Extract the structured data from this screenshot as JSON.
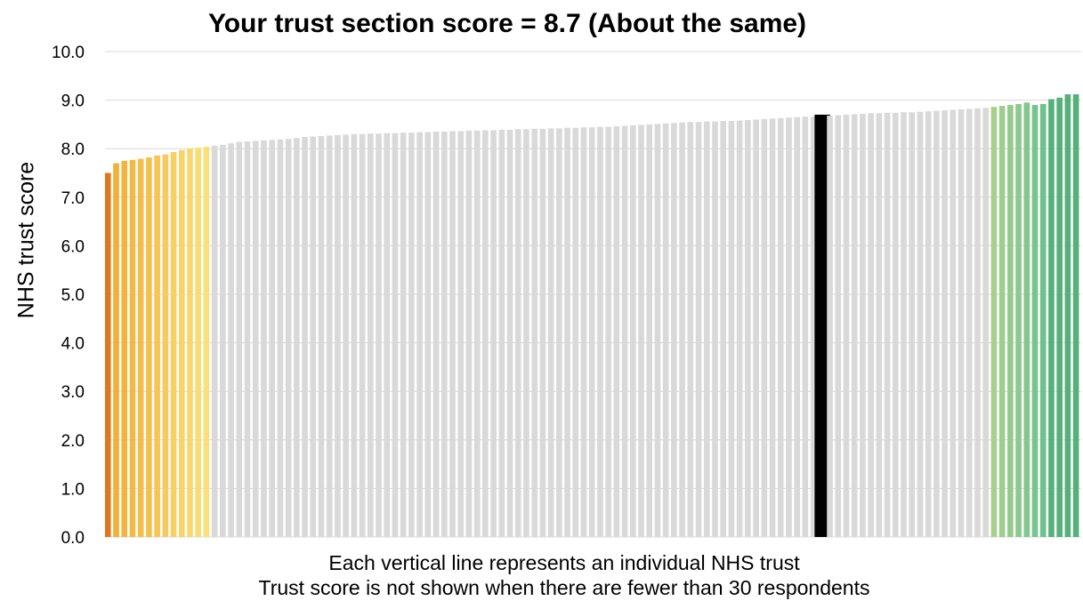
{
  "chart_data": {
    "type": "bar",
    "title": "Your trust section score = 8.7 (About the same)",
    "ylabel": "NHS trust score",
    "xlabel": "",
    "ylim": [
      0,
      10
    ],
    "yticks": [
      "0.0",
      "1.0",
      "2.0",
      "3.0",
      "4.0",
      "5.0",
      "6.0",
      "7.0",
      "8.0",
      "9.0",
      "10.0"
    ],
    "grid": true,
    "notes": [
      "Each vertical line represents an individual NHS trust",
      "Trust score is not shown when there are fewer than 30 respondents"
    ],
    "highlighted_trust_score": 8.7,
    "colors": {
      "much_worse": "#e2761f",
      "worse_start": "#f0b03a",
      "worse_end": "#fbe07a",
      "about_same": "#d9d9d9",
      "your_trust": "#000000",
      "better_start": "#a8d08d",
      "better_end": "#6dc28e",
      "much_better": "#55b07a",
      "gridline": "#d9d9d9"
    },
    "values": [
      7.5,
      7.7,
      7.75,
      7.77,
      7.79,
      7.82,
      7.86,
      7.88,
      7.93,
      7.97,
      8.0,
      8.02,
      8.04,
      8.06,
      8.08,
      8.11,
      8.14,
      8.15,
      8.16,
      8.17,
      8.18,
      8.19,
      8.2,
      8.22,
      8.24,
      8.25,
      8.26,
      8.27,
      8.28,
      8.29,
      8.3,
      8.3,
      8.31,
      8.31,
      8.32,
      8.32,
      8.33,
      8.33,
      8.34,
      8.34,
      8.35,
      8.35,
      8.36,
      8.36,
      8.37,
      8.37,
      8.38,
      8.38,
      8.39,
      8.39,
      8.4,
      8.4,
      8.41,
      8.41,
      8.42,
      8.42,
      8.43,
      8.43,
      8.44,
      8.44,
      8.45,
      8.45,
      8.46,
      8.47,
      8.48,
      8.49,
      8.5,
      8.51,
      8.52,
      8.53,
      8.54,
      8.55,
      8.55,
      8.56,
      8.56,
      8.57,
      8.57,
      8.58,
      8.59,
      8.6,
      8.61,
      8.62,
      8.63,
      8.64,
      8.65,
      8.66,
      8.66,
      8.7,
      8.68,
      8.69,
      8.7,
      8.71,
      8.72,
      8.73,
      8.73,
      8.74,
      8.74,
      8.75,
      8.75,
      8.76,
      8.77,
      8.78,
      8.79,
      8.8,
      8.81,
      8.82,
      8.83,
      8.84,
      8.86,
      8.88,
      8.9,
      8.92,
      8.95,
      8.9,
      8.92,
      9.02,
      9.05,
      9.12,
      9.12
    ],
    "categories": {
      "much_worse_count": 1,
      "worse_count": 12,
      "highlight_index": 87,
      "better_count": 7,
      "much_better_count": 4
    }
  }
}
